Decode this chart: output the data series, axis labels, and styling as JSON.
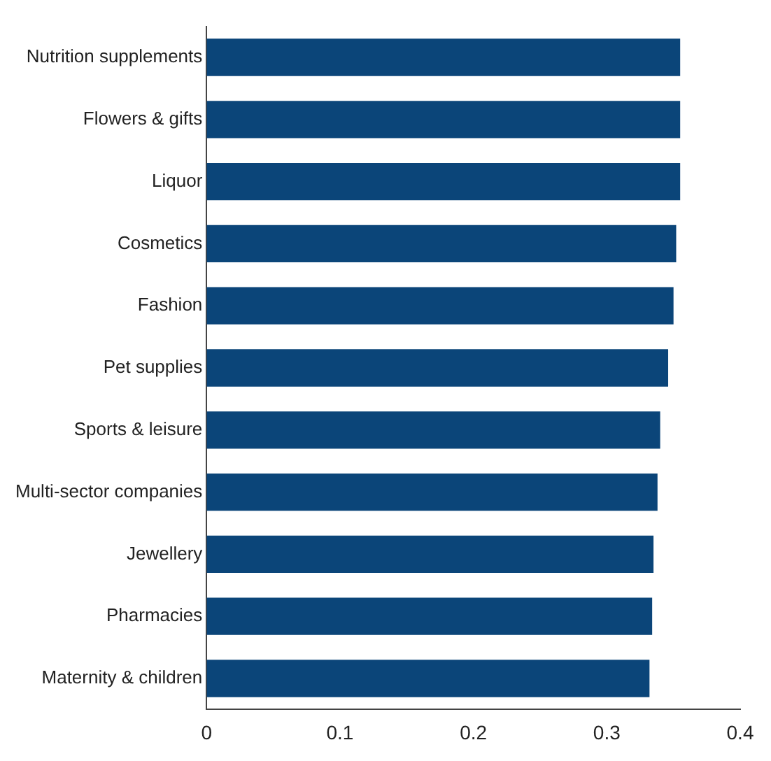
{
  "chart_data": {
    "type": "bar",
    "orientation": "horizontal",
    "categories": [
      "Nutrition supplements",
      "Flowers & gifts",
      "Liquor",
      "Cosmetics",
      "Fashion",
      "Pet supplies",
      "Sports & leisure",
      "Multi-sector companies",
      "Jewellery",
      "Pharmacies",
      "Maternity & children"
    ],
    "values": [
      0.355,
      0.355,
      0.355,
      0.352,
      0.35,
      0.346,
      0.34,
      0.338,
      0.335,
      0.334,
      0.332
    ],
    "color": "#0b4579",
    "xlim": [
      0,
      0.4
    ],
    "xticks": [
      0,
      0.1,
      0.2,
      0.3,
      0.4
    ],
    "grid": false,
    "legend": false
  }
}
